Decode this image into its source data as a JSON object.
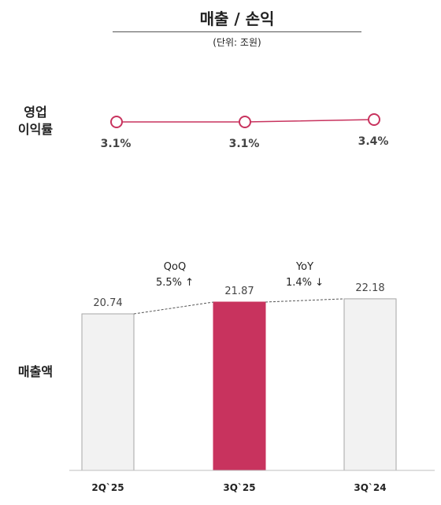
{
  "header": {
    "title": "매출 / 손익",
    "unit": "(단위: 조원)"
  },
  "labels": {
    "op_margin_line1": "영업",
    "op_margin_line2": "이익률",
    "revenue": "매출액"
  },
  "comparisons": {
    "qoq": {
      "label": "QoQ",
      "value": "5.5%",
      "arrow": "↑"
    },
    "yoy": {
      "label": "YoY",
      "value": "1.4%",
      "arrow": "↓"
    }
  },
  "colors": {
    "accent": "#c8335e",
    "bar_default": "#f2f2f2",
    "bar_border": "#a6a6a6",
    "line": "#c8335e"
  },
  "chart_data": [
    {
      "type": "line",
      "categories": [
        "2Q`25",
        "3Q`25",
        "3Q`24"
      ],
      "values": [
        3.1,
        3.1,
        3.4
      ],
      "data_labels": [
        "3.1%",
        "3.1%",
        "3.4%"
      ]
    },
    {
      "type": "bar",
      "categories": [
        "2Q`25",
        "3Q`25",
        "3Q`24"
      ],
      "values": [
        20.74,
        21.87,
        22.18
      ],
      "data_labels": [
        "20.74",
        "21.87",
        "22.18"
      ],
      "highlight": "3Q`25"
    }
  ]
}
